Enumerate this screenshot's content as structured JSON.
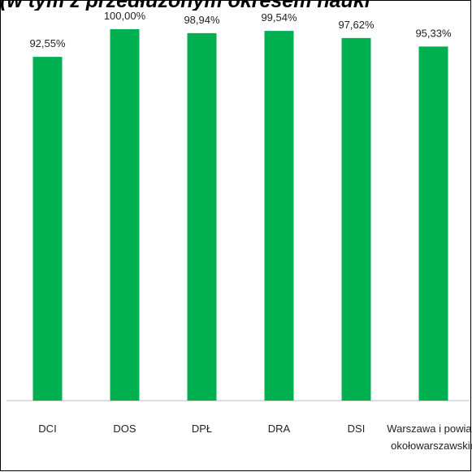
{
  "chart_data": {
    "type": "bar",
    "title": "(w tym z przedłużonym okresem nauki",
    "categories": [
      "DCI",
      "DOS",
      "DPŁ",
      "DRA",
      "DSI",
      "Warszawa i powiaty okołowarszawskie"
    ],
    "category_lines": [
      [
        "DCI"
      ],
      [
        "DOS"
      ],
      [
        "DPŁ"
      ],
      [
        "DRA"
      ],
      [
        "DSI"
      ],
      [
        "Warszawa i powiaty",
        "okołowarszawskie"
      ]
    ],
    "values": [
      92.55,
      100.0,
      98.94,
      99.54,
      97.62,
      95.33
    ],
    "value_labels": [
      "92,55%",
      "100,00%",
      "98,94%",
      "99,54%",
      "97,62%",
      "95,33%"
    ],
    "ylim": [
      0,
      100
    ],
    "grid": false,
    "legend": "none",
    "bar_color": "#00b050"
  }
}
